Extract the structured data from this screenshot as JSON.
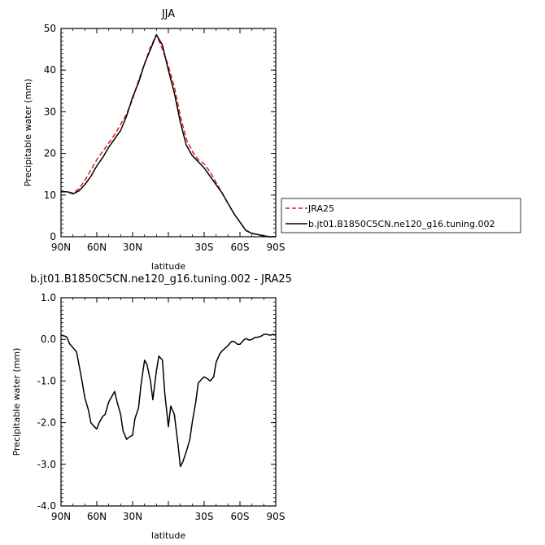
{
  "chart_data": [
    {
      "type": "line",
      "title": "JJA",
      "xlabel": "latitude",
      "ylabel": "Precipitable water (mm)",
      "xlim": [
        90,
        -90
      ],
      "ylim": [
        0,
        50
      ],
      "x_ticks": [
        90,
        60,
        30,
        0,
        -30,
        -60,
        -90
      ],
      "x_tick_labels": [
        "90N",
        "60N",
        "30N",
        "",
        "30S",
        "60S",
        "90S"
      ],
      "y_ticks": [
        0,
        10,
        20,
        30,
        40,
        50
      ],
      "y_tick_labels": [
        "0",
        "10",
        "20",
        "30",
        "40",
        "50"
      ],
      "legend_position": "right",
      "series": [
        {
          "name": "JRA25",
          "color": "#e31a1c",
          "dash": "dashed",
          "x": [
            90,
            85,
            80,
            75,
            70,
            65,
            60,
            55,
            50,
            45,
            40,
            35,
            30,
            25,
            20,
            15,
            10,
            5,
            0,
            -5,
            -10,
            -15,
            -20,
            -25,
            -30,
            -35,
            -40,
            -45,
            -50,
            -55,
            -60,
            -65,
            -70,
            -75,
            -80,
            -85,
            -90
          ],
          "y": [
            10.8,
            10.8,
            10.5,
            11.5,
            13.5,
            16.0,
            18.5,
            20.5,
            22.5,
            24.5,
            27.0,
            29.5,
            33.0,
            37.5,
            41.5,
            45.5,
            48.5,
            45.0,
            41.0,
            36.0,
            29.0,
            23.5,
            20.5,
            18.5,
            17.5,
            15.5,
            13.0,
            10.5,
            8.0,
            5.5,
            3.5,
            1.5,
            0.8,
            0.5,
            0.2,
            0.0,
            0.0
          ]
        },
        {
          "name": "b.jt01.B1850C5CN.ne120_g16.tuning.002",
          "color": "#000000",
          "dash": "solid",
          "x": [
            90,
            85,
            80,
            75,
            70,
            65,
            60,
            55,
            50,
            45,
            40,
            35,
            30,
            25,
            20,
            15,
            10,
            5,
            0,
            -5,
            -10,
            -15,
            -20,
            -25,
            -30,
            -35,
            -40,
            -45,
            -50,
            -55,
            -60,
            -65,
            -70,
            -75,
            -80,
            -85,
            -90
          ],
          "y": [
            10.8,
            10.8,
            10.3,
            11.0,
            12.5,
            14.5,
            17.0,
            19.0,
            21.5,
            23.5,
            25.5,
            29.0,
            33.5,
            37.0,
            41.5,
            45.0,
            48.5,
            46.0,
            40.0,
            34.5,
            27.5,
            22.0,
            19.5,
            18.0,
            16.5,
            14.5,
            12.5,
            10.5,
            8.0,
            5.5,
            3.5,
            1.5,
            0.8,
            0.5,
            0.2,
            0.0,
            0.0
          ]
        }
      ]
    },
    {
      "type": "line",
      "title": "b.jt01.B1850C5CN.ne120_g16.tuning.002 - JRA25",
      "xlabel": "latitude",
      "ylabel": "Precipitable water (mm)",
      "xlim": [
        90,
        -90
      ],
      "ylim": [
        -4,
        1
      ],
      "x_ticks": [
        90,
        60,
        30,
        0,
        -30,
        -60,
        -90
      ],
      "x_tick_labels": [
        "90N",
        "60N",
        "30N",
        "",
        "30S",
        "60S",
        "90S"
      ],
      "y_ticks": [
        -4,
        -3,
        -2,
        -1,
        0,
        1
      ],
      "y_tick_labels": [
        "-4.0",
        "-3.0",
        "-2.0",
        "-1.0",
        "0.0",
        "1.0"
      ],
      "series": [
        {
          "color": "#000000",
          "dash": "solid",
          "x": [
            90,
            87,
            85,
            83,
            80,
            77,
            75,
            73,
            70,
            67,
            65,
            62,
            60,
            58,
            55,
            53,
            50,
            48,
            45,
            43,
            40,
            38,
            35,
            33,
            30,
            28,
            25,
            23,
            20,
            18,
            15,
            13,
            10,
            8,
            5,
            3,
            0,
            -2,
            -5,
            -8,
            -10,
            -12,
            -15,
            -18,
            -20,
            -23,
            -25,
            -28,
            -30,
            -33,
            -35,
            -38,
            -40,
            -43,
            -45,
            -48,
            -50,
            -53,
            -55,
            -58,
            -60,
            -63,
            -65,
            -68,
            -70,
            -73,
            -75,
            -78,
            -80,
            -83,
            -85,
            -88,
            -90
          ],
          "y": [
            0.1,
            0.08,
            0.05,
            -0.1,
            -0.2,
            -0.3,
            -0.6,
            -0.9,
            -1.4,
            -1.7,
            -2.0,
            -2.1,
            -2.15,
            -2.0,
            -1.85,
            -1.8,
            -1.5,
            -1.4,
            -1.25,
            -1.5,
            -1.8,
            -2.2,
            -2.4,
            -2.35,
            -2.3,
            -1.9,
            -1.65,
            -1.1,
            -0.5,
            -0.6,
            -1.0,
            -1.45,
            -0.75,
            -0.4,
            -0.5,
            -1.3,
            -2.1,
            -1.6,
            -1.8,
            -2.5,
            -3.05,
            -2.95,
            -2.7,
            -2.4,
            -2.0,
            -1.5,
            -1.05,
            -0.95,
            -0.9,
            -0.95,
            -1.0,
            -0.9,
            -0.55,
            -0.35,
            -0.28,
            -0.2,
            -0.15,
            -0.05,
            -0.05,
            -0.12,
            -0.12,
            -0.02,
            0.02,
            -0.02,
            0.0,
            0.05,
            0.05,
            0.08,
            0.12,
            0.12,
            0.1,
            0.12,
            0.1
          ]
        }
      ]
    }
  ]
}
